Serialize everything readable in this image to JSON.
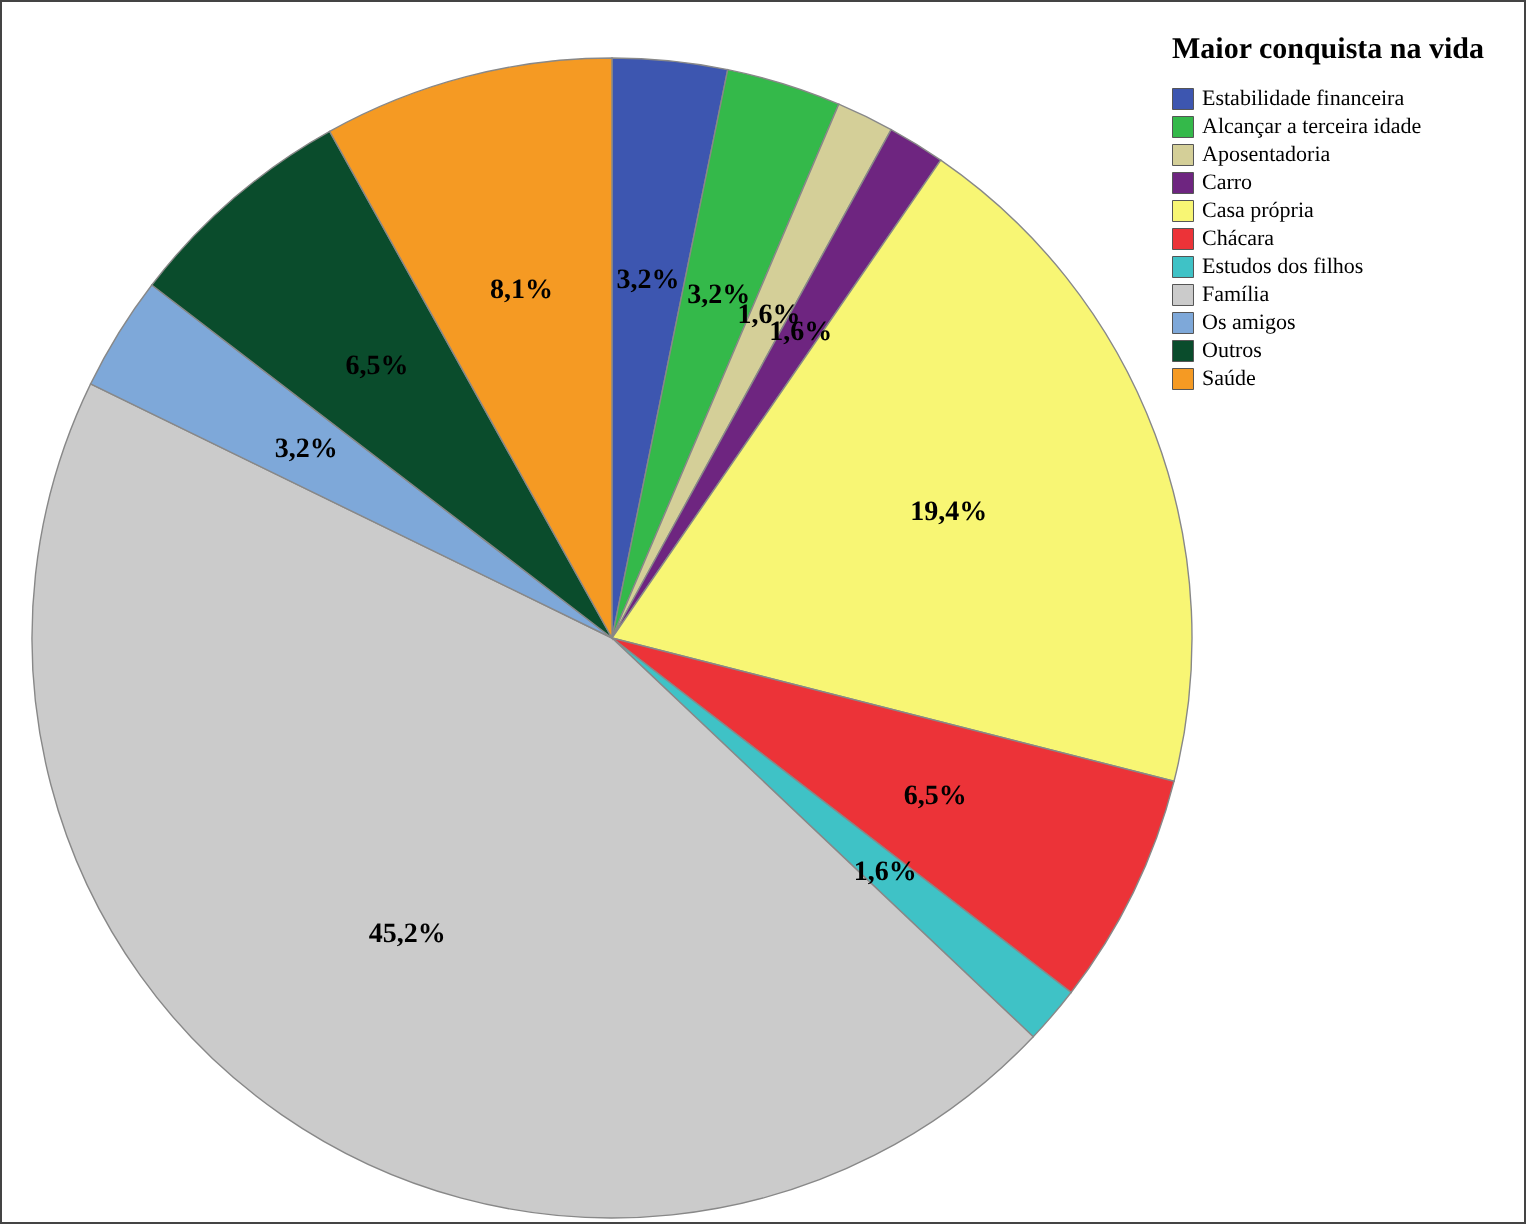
{
  "chart_data": {
    "type": "pie",
    "legend_title": "Maior conquista na vida",
    "legend": "top right",
    "categories": [
      "Estabilidade financeira",
      "Alcançar a terceira idade",
      "Aposentadoria",
      "Carro",
      "Casa própria",
      "Chácara",
      "Estudos dos filhos",
      "Família",
      "Os amigos",
      "Outros",
      "Saúde"
    ],
    "values": [
      3.2,
      3.2,
      1.6,
      1.6,
      19.4,
      6.5,
      1.6,
      45.2,
      3.2,
      6.5,
      8.1
    ],
    "value_labels": [
      "3,2%",
      "3,2%",
      "1,6%",
      "1,6%",
      "19,4%",
      "6,5%",
      "1,6%",
      "45,2%",
      "3,2%",
      "6,5%",
      "8,1%"
    ],
    "colors": [
      "#3d56b0",
      "#34b94a",
      "#d4cf98",
      "#6e2580",
      "#f8f674",
      "#ec3338",
      "#3fc2c6",
      "#cbcbcb",
      "#7ea8d9",
      "#0a4c2c",
      "#f59a23"
    ]
  }
}
